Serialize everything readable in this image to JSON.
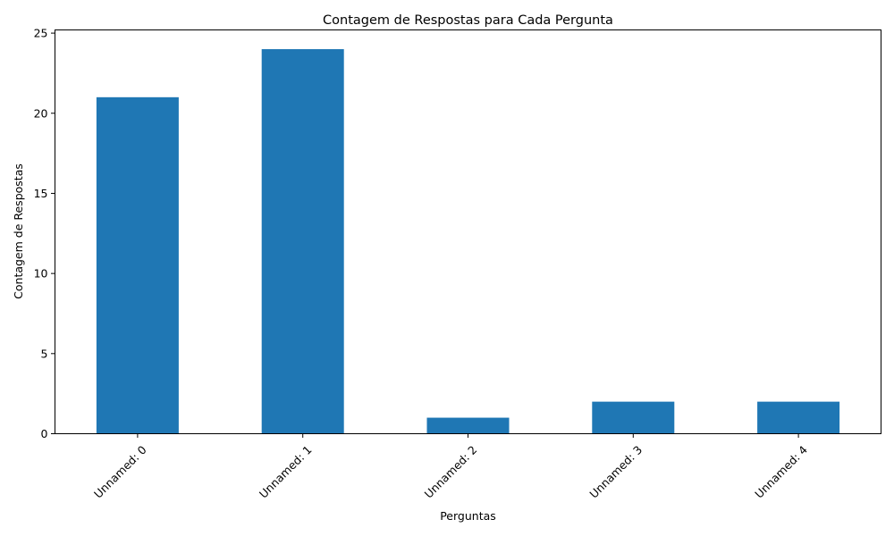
{
  "chart_data": {
    "type": "bar",
    "title": "Contagem de Respostas para Cada Pergunta",
    "xlabel": "Perguntas",
    "ylabel": "Contagem de Respostas",
    "categories": [
      "Unnamed: 0",
      "Unnamed: 1",
      "Unnamed: 2",
      "Unnamed: 3",
      "Unnamed: 4"
    ],
    "values": [
      21,
      24,
      1,
      2,
      2
    ],
    "ylim": [
      0,
      25.2
    ],
    "yticks": [
      0,
      5,
      10,
      15,
      20,
      25
    ],
    "x_tick_rotation_deg": 45,
    "grid": false,
    "legend": "none",
    "bar_color": "#1f77b4"
  }
}
